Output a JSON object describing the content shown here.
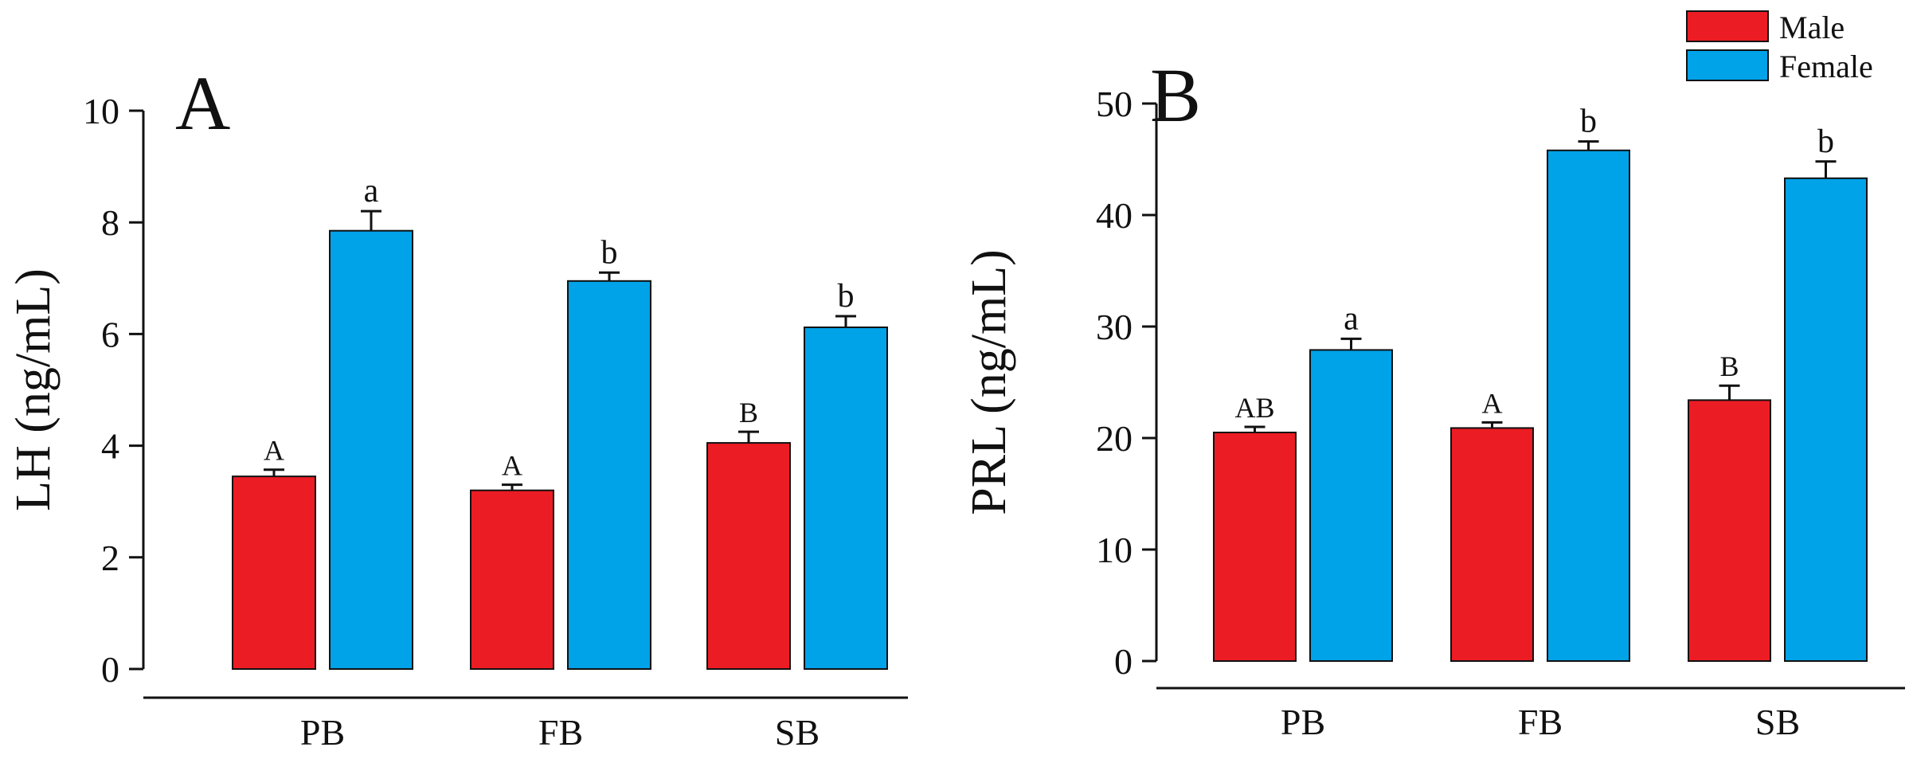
{
  "legend": {
    "items": [
      {
        "label": "Male",
        "color": "#ec1c24"
      },
      {
        "label": "Female",
        "color": "#00a2e8"
      }
    ]
  },
  "chart_data": [
    {
      "type": "bar",
      "panel": "A",
      "title": "",
      "xlabel": "",
      "ylabel": "LH (ng/mL)",
      "ylim": [
        0,
        10
      ],
      "yticks": [
        0,
        2,
        4,
        6,
        8,
        10
      ],
      "categories": [
        "PB",
        "FB",
        "SB"
      ],
      "grid": false,
      "series": [
        {
          "name": "Male",
          "color": "#ec1c24",
          "values": [
            3.45,
            3.2,
            4.05
          ],
          "errors": [
            0.12,
            0.1,
            0.2
          ],
          "labels": [
            "A",
            "A",
            "B"
          ]
        },
        {
          "name": "Female",
          "color": "#00a2e8",
          "values": [
            7.85,
            6.95,
            6.12
          ],
          "errors": [
            0.35,
            0.15,
            0.2
          ],
          "labels": [
            "a",
            "b",
            "b"
          ]
        }
      ]
    },
    {
      "type": "bar",
      "panel": "B",
      "title": "",
      "xlabel": "",
      "ylabel": "PRL (ng/mL)",
      "ylim": [
        0,
        50
      ],
      "yticks": [
        0,
        10,
        20,
        30,
        40,
        50
      ],
      "categories": [
        "PB",
        "FB",
        "SB"
      ],
      "grid": false,
      "legend_position": "top-right",
      "series": [
        {
          "name": "Male",
          "color": "#ec1c24",
          "values": [
            20.5,
            20.9,
            23.4
          ],
          "errors": [
            0.5,
            0.5,
            1.3
          ],
          "labels": [
            "AB",
            "A",
            "B"
          ]
        },
        {
          "name": "Female",
          "color": "#00a2e8",
          "values": [
            27.9,
            45.8,
            43.3
          ],
          "errors": [
            1.0,
            0.8,
            1.5
          ],
          "labels": [
            "a",
            "b",
            "b"
          ]
        }
      ]
    }
  ]
}
